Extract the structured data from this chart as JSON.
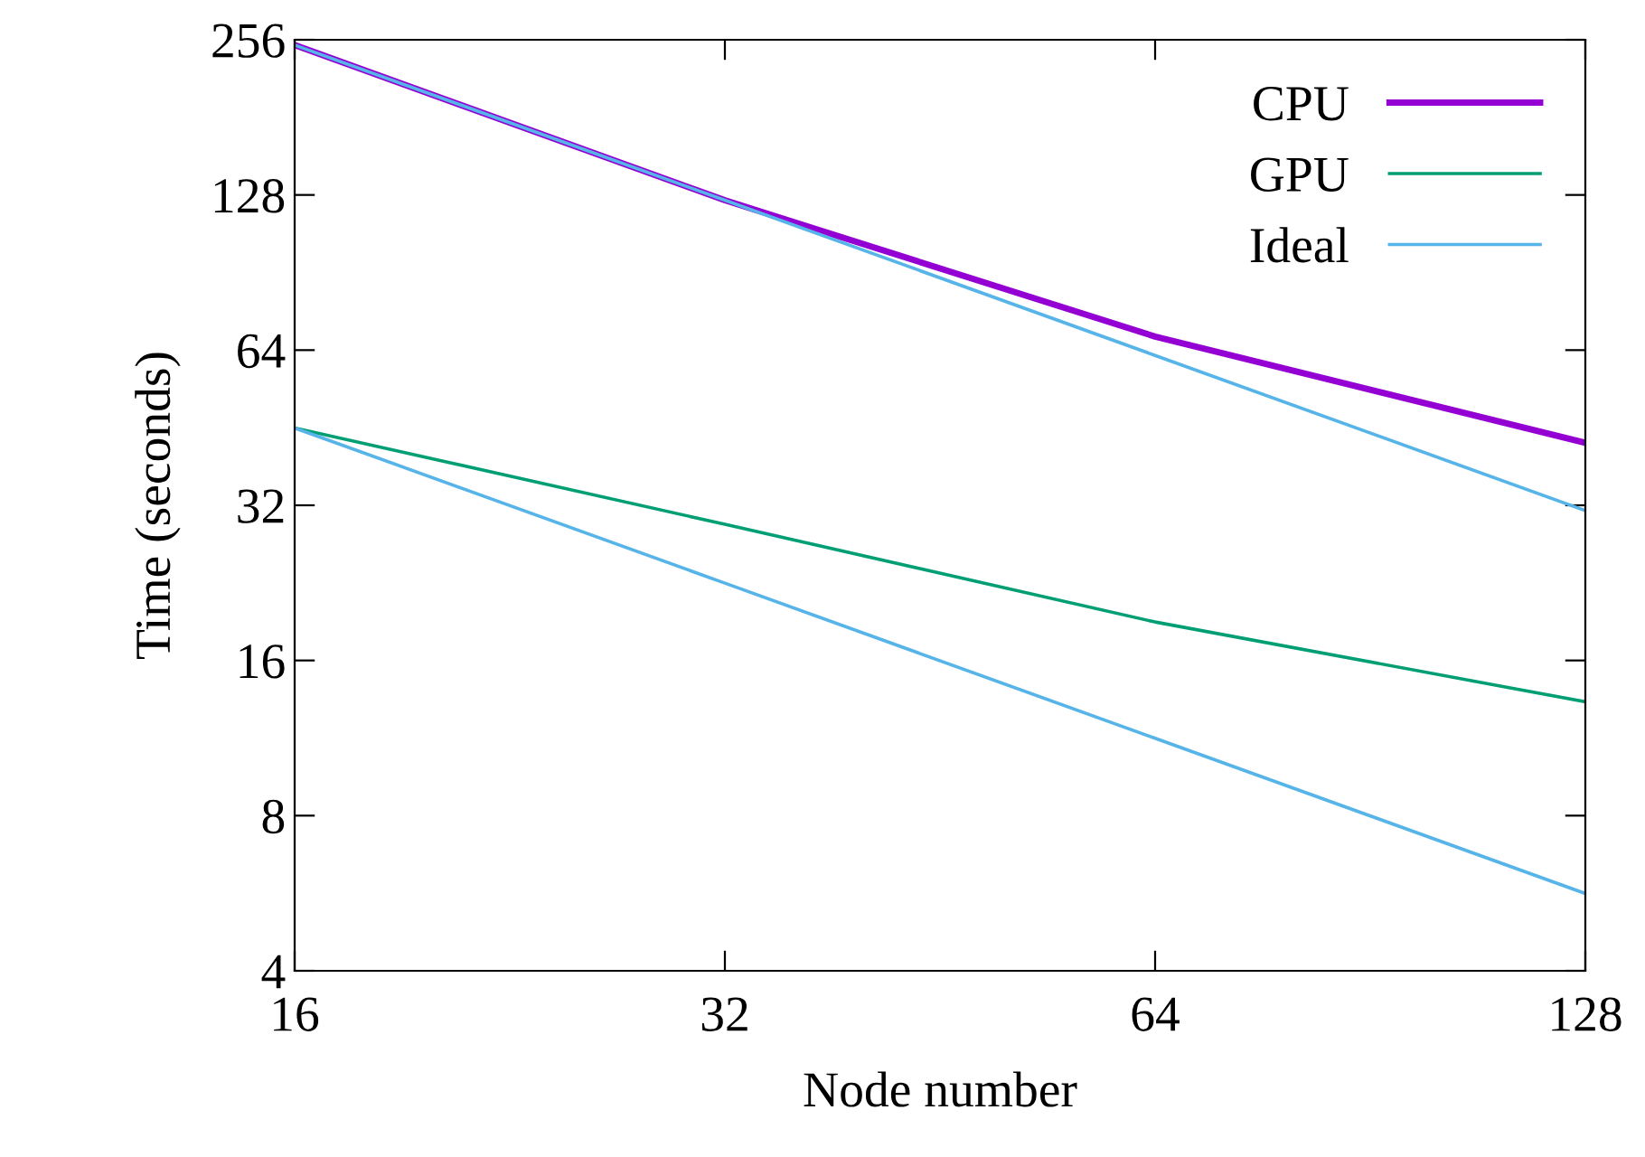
{
  "chart_data": {
    "type": "line",
    "xlabel": "Node number",
    "ylabel": "Time (seconds)",
    "log": "xy",
    "x": [
      16,
      32,
      64,
      128
    ],
    "series": [
      {
        "name": "CPU",
        "color": "#9400d3",
        "values": [
          250,
          125,
          68,
          42.3
        ]
      },
      {
        "name": "GPU",
        "color": "#009e73",
        "values": [
          45.2,
          29.4,
          19,
          13.3
        ]
      },
      {
        "name": "Ideal",
        "color": "#56b4e9",
        "values": [
          250,
          125,
          62.5,
          31.25
        ]
      },
      {
        "color": "#56b4e9",
        "values": [
          45.2,
          22.6,
          11.3,
          5.65
        ]
      }
    ],
    "xlim": [
      16,
      128
    ],
    "xticks": [
      16,
      32,
      64,
      128
    ],
    "ylim": [
      4,
      256
    ],
    "yticks": [
      4,
      8,
      16,
      32,
      64,
      128,
      256
    ],
    "legend": "top right",
    "grid": false,
    "marker": "none",
    "line_style": "solid"
  }
}
